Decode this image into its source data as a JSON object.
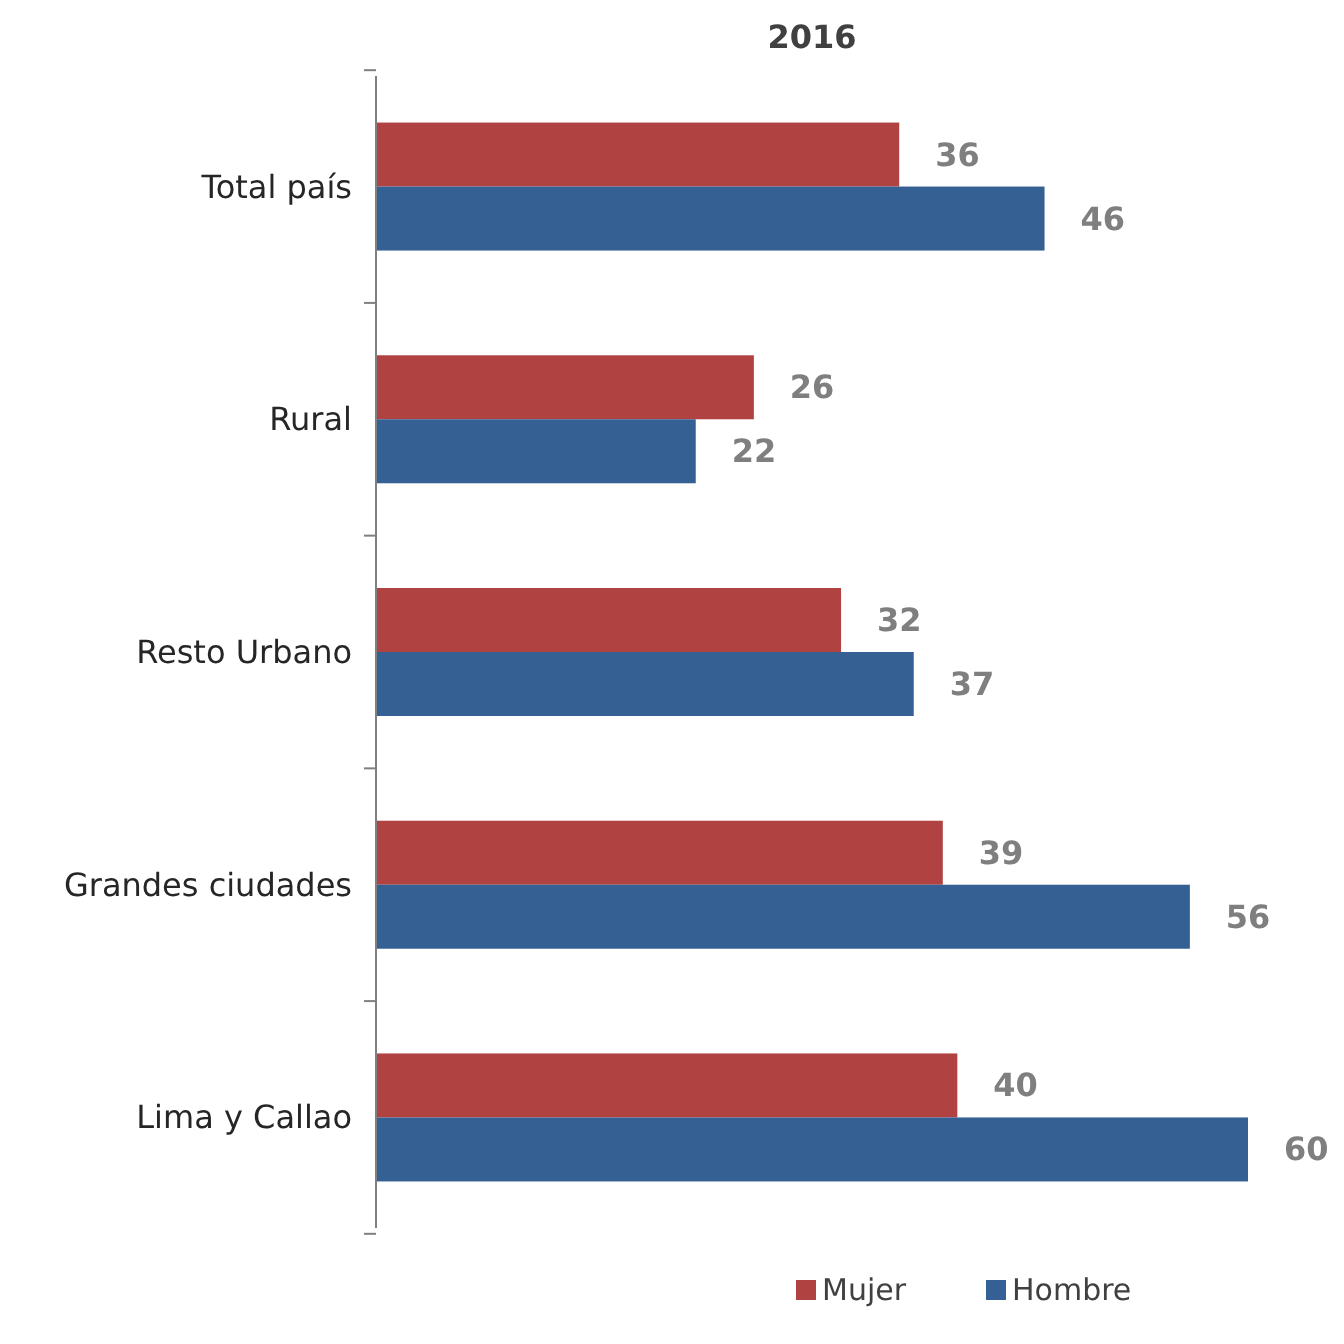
{
  "chart_data": {
    "type": "bar",
    "orientation": "horizontal",
    "title": "2016",
    "categories": [
      "Total país",
      "Rural",
      "Resto Urbano",
      "Grandes ciudades",
      "Lima y Callao"
    ],
    "series": [
      {
        "name": "Mujer",
        "color": "#b04242",
        "values": [
          36,
          26,
          32,
          39,
          40
        ]
      },
      {
        "name": "Hombre",
        "color": "#356093",
        "values": [
          46,
          22,
          37,
          56,
          60
        ]
      }
    ],
    "data_labels": true,
    "legend": "bottom"
  }
}
